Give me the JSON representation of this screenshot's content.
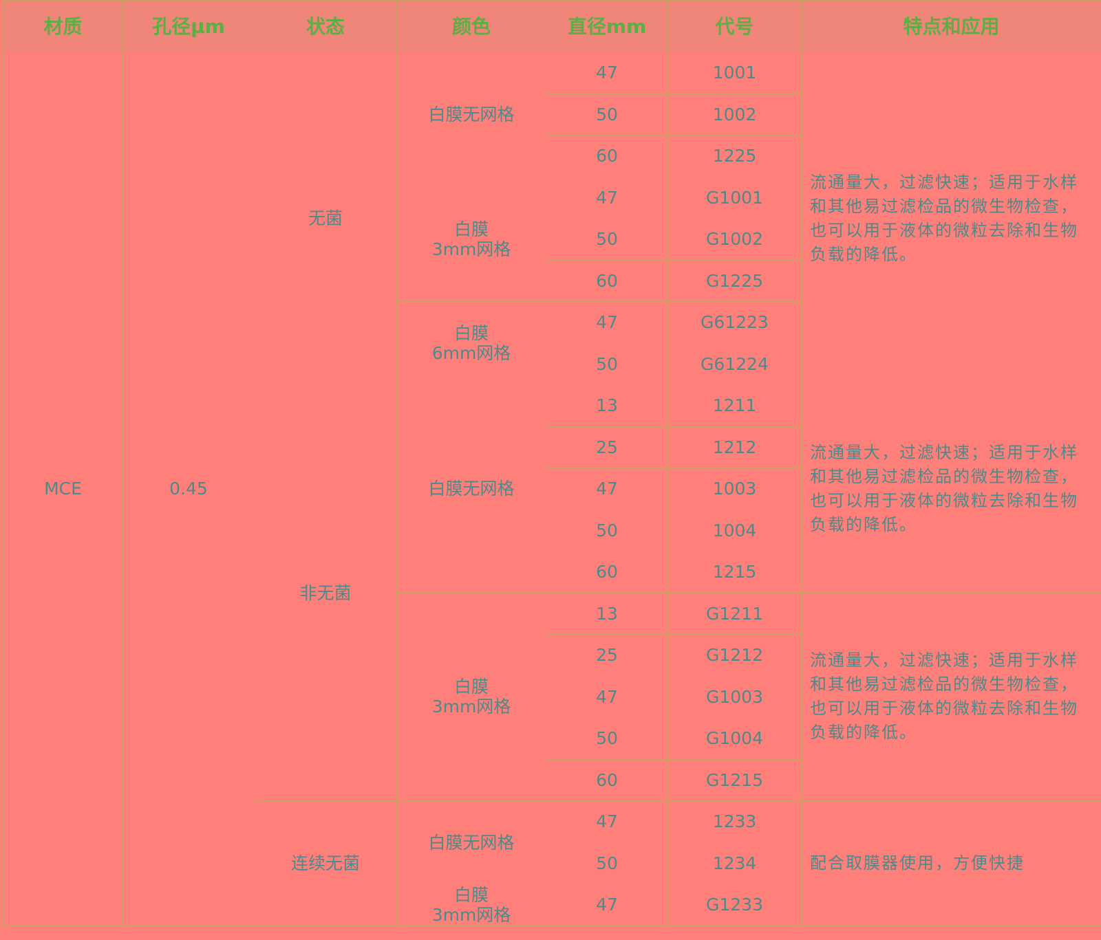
{
  "headers": [
    "材质",
    "孔径μm",
    "状态",
    "颜色",
    "直径mm",
    "代号",
    "特点和应用"
  ],
  "material": "MCE",
  "pore": "0.45",
  "states": [
    {
      "name": "无菌",
      "sections": [
        {
          "description": "流通量大，过滤快速；适用于水样和其他易过滤检品的微生物检查，也可以用于液体的微粒去除和生物负载的降低。",
          "colors": [
            {
              "name": "白膜无网格",
              "items": [
                {
                  "d": "47",
                  "code": "1001"
                },
                {
                  "d": "50",
                  "code": "1002"
                },
                {
                  "d": "60",
                  "code": "1225"
                }
              ]
            },
            {
              "name": "白膜\n3mm网格",
              "items": [
                {
                  "d": "47",
                  "code": "G1001"
                },
                {
                  "d": "50",
                  "code": "G1002"
                },
                {
                  "d": "60",
                  "code": "G1225"
                }
              ]
            },
            {
              "name": "白膜\n6mm网格",
              "items": [
                {
                  "d": "47",
                  "code": "G61223"
                },
                {
                  "d": "50",
                  "code": "G61224"
                }
              ]
            }
          ]
        }
      ]
    },
    {
      "name": "非无菌",
      "sections": [
        {
          "description": "流通量大，过滤快速；适用于水样和其他易过滤检品的微生物检查，也可以用于液体的微粒去除和生物负载的降低。",
          "colors": [
            {
              "name": "白膜无网格",
              "items": [
                {
                  "d": "13",
                  "code": "1211"
                },
                {
                  "d": "25",
                  "code": "1212"
                },
                {
                  "d": "47",
                  "code": "1003"
                },
                {
                  "d": "50",
                  "code": "1004"
                },
                {
                  "d": "60",
                  "code": "1215"
                }
              ]
            }
          ]
        },
        {
          "description": "流通量大，过滤快速；适用于水样和其他易过滤检品的微生物检查，也可以用于液体的微粒去除和生物负载的降低。",
          "colors": [
            {
              "name": "白膜\n3mm网格",
              "items": [
                {
                  "d": "13",
                  "code": "G1211"
                },
                {
                  "d": "25",
                  "code": "G1212"
                },
                {
                  "d": "47",
                  "code": "G1003"
                },
                {
                  "d": "50",
                  "code": "G1004"
                },
                {
                  "d": "60",
                  "code": "G1215"
                }
              ]
            }
          ]
        }
      ]
    },
    {
      "name": "连续无菌",
      "sections": [
        {
          "description": "配合取膜器使用，方便快捷",
          "colors": [
            {
              "name": "白膜无网格",
              "items": [
                {
                  "d": "47",
                  "code": "1233"
                },
                {
                  "d": "50",
                  "code": "1234"
                }
              ]
            },
            {
              "name": "白膜\n3mm网格",
              "items": [
                {
                  "d": "47",
                  "code": "G1233"
                }
              ]
            }
          ]
        }
      ]
    }
  ],
  "colors": {
    "background": "#ff7f7b",
    "header_bg": "#f0857a",
    "header_text": "#5fae45",
    "body_text": "#4f8a88",
    "border": "#c9a064"
  }
}
